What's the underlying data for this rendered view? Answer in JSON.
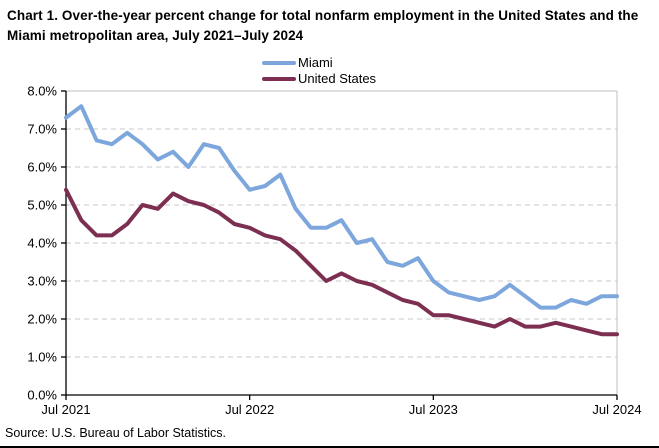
{
  "header": {
    "title": "Chart 1. Over-the-year percent change for total nonfarm employment in the United States and the Miami metropolitan area, July 2021–July 2024"
  },
  "legend": [
    {
      "label": "Miami",
      "color": "#7DA7DC"
    },
    {
      "label": "United States",
      "color": "#7C2F51"
    }
  ],
  "source": "Source: U.S. Bureau of Labor Statistics.",
  "chart_data": {
    "type": "line",
    "title": "Chart 1. Over-the-year percent change for total nonfarm employment in the United States and the Miami metropolitan area, July 2021–July 2024",
    "x_start": "Jul 2021",
    "x_end": "Jul 2024",
    "frequency": "monthly",
    "n_points": 37,
    "x_tick_labels": [
      "Jul 2021",
      "Jul 2022",
      "Jul 2023",
      "Jul 2024"
    ],
    "x_tick_indices": [
      0,
      12,
      24,
      36
    ],
    "y_tick_labels": [
      "8.0%",
      "7.0%",
      "6.0%",
      "5.0%",
      "4.0%",
      "3.0%",
      "2.0%",
      "1.0%",
      "0.0%"
    ],
    "ylim": [
      0,
      8
    ],
    "grid": "horizontal dashed",
    "grid_color": "#c9c9c9",
    "plot_border_color": "#bfbfbf",
    "axis_color": "#000000",
    "legend_position": "top-center",
    "series": [
      {
        "name": "Miami",
        "color": "#7DA7DC",
        "values": [
          7.3,
          7.6,
          6.7,
          6.6,
          6.9,
          6.6,
          6.2,
          6.4,
          6.0,
          6.6,
          6.5,
          5.9,
          5.4,
          5.5,
          5.8,
          4.9,
          4.4,
          4.4,
          4.6,
          4.0,
          4.1,
          3.5,
          3.4,
          3.6,
          3.0,
          2.7,
          2.6,
          2.5,
          2.6,
          2.9,
          2.6,
          2.3,
          2.3,
          2.5,
          2.4,
          2.6,
          2.6
        ]
      },
      {
        "name": "United States",
        "color": "#7C2F51",
        "values": [
          5.4,
          4.6,
          4.2,
          4.2,
          4.5,
          5.0,
          4.9,
          5.3,
          5.1,
          5.0,
          4.8,
          4.5,
          4.4,
          4.2,
          4.1,
          3.8,
          3.4,
          3.0,
          3.2,
          3.0,
          2.9,
          2.7,
          2.5,
          2.4,
          2.1,
          2.1,
          2.0,
          1.9,
          1.8,
          2.0,
          1.8,
          1.8,
          1.9,
          1.8,
          1.7,
          1.6,
          1.6
        ]
      }
    ]
  }
}
